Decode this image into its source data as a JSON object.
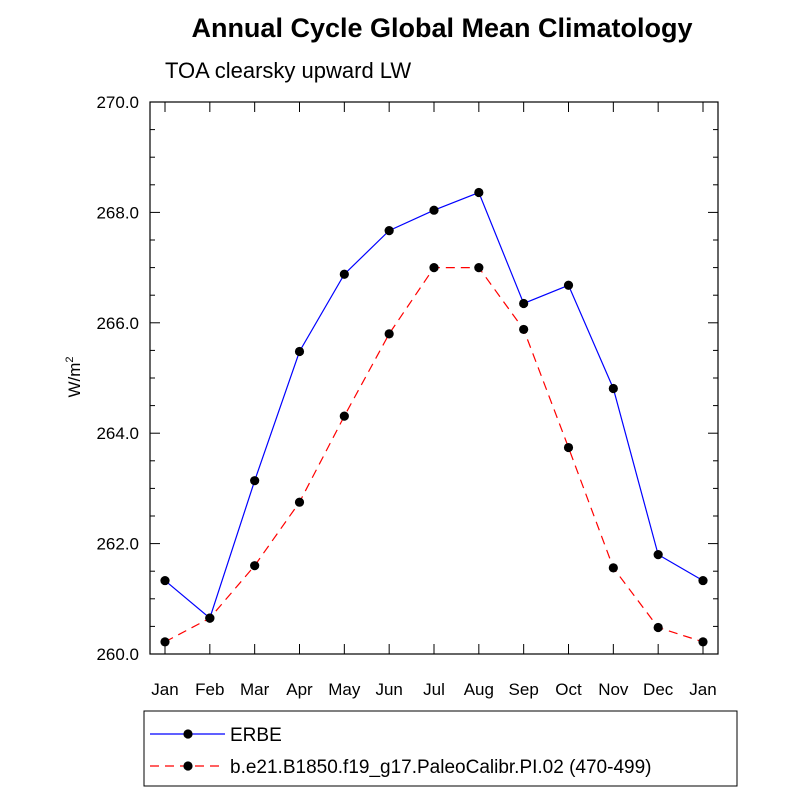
{
  "chart_data": {
    "type": "line",
    "title": "Annual Cycle Global Mean Climatology",
    "subtitle": "TOA clearsky upward LW",
    "ylabel": "W/m",
    "ylabel_superscript": "2",
    "categories": [
      "Jan",
      "Feb",
      "Mar",
      "Apr",
      "May",
      "Jun",
      "Jul",
      "Aug",
      "Sep",
      "Oct",
      "Nov",
      "Dec",
      "Jan"
    ],
    "ylim": [
      260.0,
      270.0
    ],
    "yticks": [
      "260.0",
      "262.0",
      "264.0",
      "266.0",
      "268.0",
      "270.0"
    ],
    "grid": false,
    "legend_position": "bottom",
    "series": [
      {
        "name": "ERBE",
        "color": "#0000ff",
        "style": "solid",
        "marker": "filled-circle",
        "values": [
          261.33,
          260.65,
          263.14,
          265.48,
          266.88,
          267.67,
          268.04,
          268.36,
          266.35,
          266.68,
          264.81,
          261.8,
          261.33
        ]
      },
      {
        "name": "b.e21.B1850.f19_g17.PaleoCalibr.PI.02 (470-499)",
        "color": "#ff0000",
        "style": "dashed",
        "marker": "filled-circle",
        "values": [
          260.22,
          260.65,
          261.6,
          262.75,
          264.31,
          265.8,
          267.0,
          267.0,
          265.88,
          263.74,
          261.56,
          260.48,
          260.22
        ]
      }
    ]
  }
}
